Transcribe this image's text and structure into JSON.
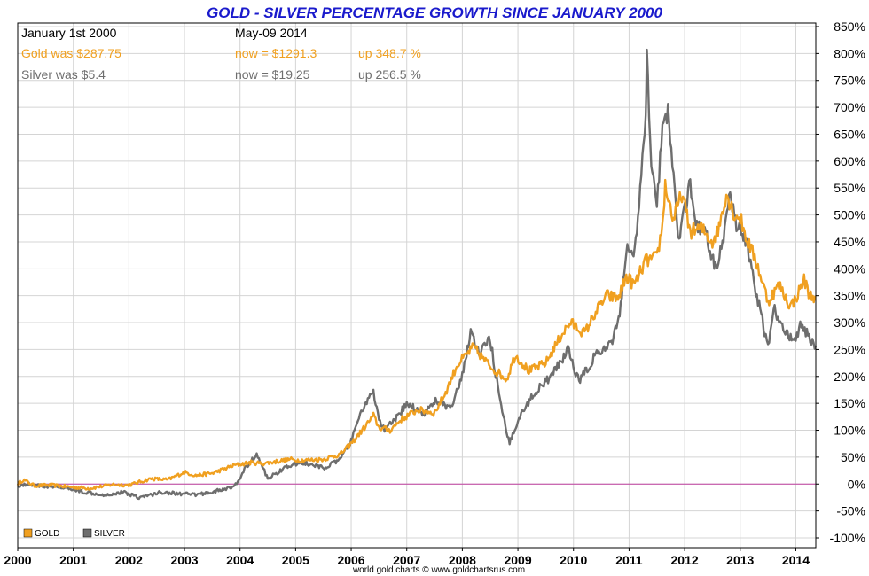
{
  "chart_data": {
    "type": "line",
    "title": "GOLD - SILVER PERCENTAGE GROWTH SINCE JANUARY 2000",
    "info": {
      "start_label": "January 1st 2000",
      "end_label": "May-09  2014",
      "gold_was": "Gold was $287.75",
      "gold_now": "now = $1291.3",
      "gold_up": "up 348.7 %",
      "silver_was": "Silver was $5.4",
      "silver_now": "now = $19.25",
      "silver_up": "up 256.5 %"
    },
    "x_ticks": [
      "2000",
      "2001",
      "2002",
      "2003",
      "2004",
      "2005",
      "2006",
      "2007",
      "2008",
      "2009",
      "2010",
      "2011",
      "2012",
      "2013",
      "2014"
    ],
    "x_range": [
      2000.0,
      2014.36
    ],
    "y_ticks": [
      "850%",
      "800%",
      "750%",
      "700%",
      "650%",
      "600%",
      "550%",
      "500%",
      "450%",
      "400%",
      "350%",
      "300%",
      "250%",
      "200%",
      "150%",
      "100%",
      "50%",
      "0%",
      "-50%",
      "-100%"
    ],
    "y_range": [
      -100,
      850
    ],
    "grid": true,
    "legend": [
      "GOLD",
      "SILVER"
    ],
    "legend_position": "bottom-left",
    "series": [
      {
        "name": "GOLD",
        "color": "#f0a020",
        "points": [
          [
            2000.0,
            0
          ],
          [
            2000.1,
            8
          ],
          [
            2000.3,
            -3
          ],
          [
            2000.6,
            -2
          ],
          [
            2000.9,
            -5
          ],
          [
            2001.0,
            -6
          ],
          [
            2001.3,
            -8
          ],
          [
            2001.7,
            -1
          ],
          [
            2002.0,
            -2
          ],
          [
            2002.4,
            10
          ],
          [
            2002.7,
            8
          ],
          [
            2003.0,
            22
          ],
          [
            2003.2,
            16
          ],
          [
            2003.5,
            20
          ],
          [
            2003.9,
            35
          ],
          [
            2004.2,
            40
          ],
          [
            2004.4,
            38
          ],
          [
            2004.6,
            41
          ],
          [
            2004.9,
            46
          ],
          [
            2005.1,
            44
          ],
          [
            2005.5,
            46
          ],
          [
            2005.8,
            55
          ],
          [
            2006.0,
            75
          ],
          [
            2006.2,
            100
          ],
          [
            2006.4,
            127
          ],
          [
            2006.5,
            105
          ],
          [
            2006.7,
            100
          ],
          [
            2006.9,
            120
          ],
          [
            2007.2,
            138
          ],
          [
            2007.5,
            132
          ],
          [
            2007.7,
            170
          ],
          [
            2007.9,
            220
          ],
          [
            2008.2,
            255
          ],
          [
            2008.4,
            230
          ],
          [
            2008.6,
            210
          ],
          [
            2008.8,
            195
          ],
          [
            2008.95,
            240
          ],
          [
            2009.2,
            210
          ],
          [
            2009.5,
            225
          ],
          [
            2009.8,
            280
          ],
          [
            2009.95,
            300
          ],
          [
            2010.2,
            280
          ],
          [
            2010.4,
            320
          ],
          [
            2010.6,
            350
          ],
          [
            2010.8,
            345
          ],
          [
            2010.95,
            385
          ],
          [
            2011.1,
            370
          ],
          [
            2011.3,
            415
          ],
          [
            2011.5,
            420
          ],
          [
            2011.6,
            480
          ],
          [
            2011.65,
            555
          ],
          [
            2011.8,
            490
          ],
          [
            2011.95,
            540
          ],
          [
            2012.1,
            470
          ],
          [
            2012.3,
            475
          ],
          [
            2012.5,
            450
          ],
          [
            2012.6,
            470
          ],
          [
            2012.75,
            540
          ],
          [
            2012.9,
            500
          ],
          [
            2013.0,
            495
          ],
          [
            2013.1,
            460
          ],
          [
            2013.3,
            410
          ],
          [
            2013.5,
            340
          ],
          [
            2013.7,
            370
          ],
          [
            2013.9,
            330
          ],
          [
            2014.0,
            345
          ],
          [
            2014.15,
            380
          ],
          [
            2014.25,
            350
          ],
          [
            2014.36,
            349
          ]
        ]
      },
      {
        "name": "SILVER",
        "color": "#6e6e6e",
        "points": [
          [
            2000.0,
            -3
          ],
          [
            2000.2,
            0
          ],
          [
            2000.5,
            -5
          ],
          [
            2000.9,
            -8
          ],
          [
            2001.2,
            -15
          ],
          [
            2001.6,
            -20
          ],
          [
            2001.9,
            -15
          ],
          [
            2002.2,
            -25
          ],
          [
            2002.6,
            -15
          ],
          [
            2002.9,
            -18
          ],
          [
            2003.2,
            -20
          ],
          [
            2003.5,
            -15
          ],
          [
            2003.9,
            -5
          ],
          [
            2004.1,
            30
          ],
          [
            2004.3,
            55
          ],
          [
            2004.5,
            10
          ],
          [
            2004.8,
            30
          ],
          [
            2005.1,
            40
          ],
          [
            2005.5,
            30
          ],
          [
            2005.8,
            45
          ],
          [
            2006.0,
            80
          ],
          [
            2006.2,
            140
          ],
          [
            2006.4,
            170
          ],
          [
            2006.5,
            120
          ],
          [
            2006.6,
            100
          ],
          [
            2006.8,
            120
          ],
          [
            2007.0,
            150
          ],
          [
            2007.3,
            130
          ],
          [
            2007.5,
            155
          ],
          [
            2007.8,
            140
          ],
          [
            2008.0,
            200
          ],
          [
            2008.15,
            285
          ],
          [
            2008.3,
            240
          ],
          [
            2008.5,
            270
          ],
          [
            2008.7,
            140
          ],
          [
            2008.85,
            75
          ],
          [
            2009.0,
            120
          ],
          [
            2009.3,
            170
          ],
          [
            2009.6,
            200
          ],
          [
            2009.9,
            250
          ],
          [
            2010.1,
            190
          ],
          [
            2010.4,
            240
          ],
          [
            2010.7,
            260
          ],
          [
            2010.85,
            330
          ],
          [
            2010.95,
            440
          ],
          [
            2011.1,
            430
          ],
          [
            2011.2,
            540
          ],
          [
            2011.3,
            680
          ],
          [
            2011.32,
            800
          ],
          [
            2011.4,
            600
          ],
          [
            2011.5,
            530
          ],
          [
            2011.6,
            650
          ],
          [
            2011.7,
            700
          ],
          [
            2011.8,
            570
          ],
          [
            2011.9,
            450
          ],
          [
            2011.95,
            480
          ],
          [
            2012.1,
            560
          ],
          [
            2012.2,
            480
          ],
          [
            2012.4,
            460
          ],
          [
            2012.55,
            400
          ],
          [
            2012.7,
            450
          ],
          [
            2012.8,
            540
          ],
          [
            2012.95,
            470
          ],
          [
            2013.0,
            480
          ],
          [
            2013.15,
            430
          ],
          [
            2013.3,
            350
          ],
          [
            2013.5,
            255
          ],
          [
            2013.6,
            330
          ],
          [
            2013.7,
            300
          ],
          [
            2013.85,
            280
          ],
          [
            2014.0,
            265
          ],
          [
            2014.1,
            300
          ],
          [
            2014.2,
            280
          ],
          [
            2014.36,
            257
          ]
        ]
      }
    ]
  },
  "footer": {
    "credit": "world gold charts © www.goldchartsrus.com"
  }
}
